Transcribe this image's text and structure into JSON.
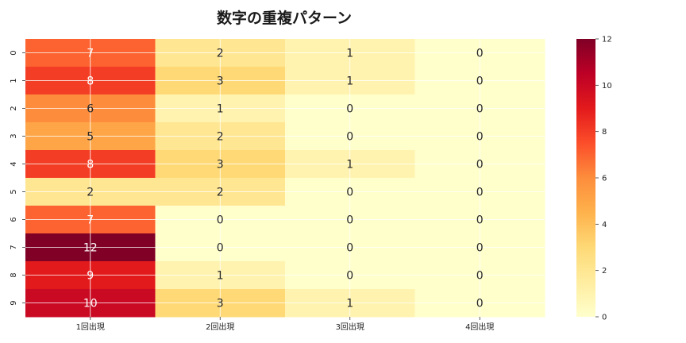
{
  "chart_data": {
    "type": "heatmap",
    "title": "数字の重複パターン",
    "xlabel": "",
    "ylabel": "",
    "x_categories": [
      "1回出現",
      "2回出現",
      "3回出現",
      "4回出現"
    ],
    "y_categories": [
      "0",
      "1",
      "2",
      "3",
      "4",
      "5",
      "6",
      "7",
      "8",
      "9"
    ],
    "values": [
      [
        7,
        2,
        1,
        0
      ],
      [
        8,
        3,
        1,
        0
      ],
      [
        6,
        1,
        0,
        0
      ],
      [
        5,
        2,
        0,
        0
      ],
      [
        8,
        3,
        1,
        0
      ],
      [
        2,
        2,
        0,
        0
      ],
      [
        7,
        0,
        0,
        0
      ],
      [
        12,
        0,
        0,
        0
      ],
      [
        9,
        1,
        0,
        0
      ],
      [
        10,
        3,
        1,
        0
      ]
    ],
    "value_range": [
      0,
      12
    ],
    "colormap": "YlOrRd",
    "colorbar_ticks": [
      0,
      2,
      4,
      6,
      8,
      10,
      12
    ],
    "annotations": true,
    "grid": true,
    "legend": "colorbar-right"
  }
}
